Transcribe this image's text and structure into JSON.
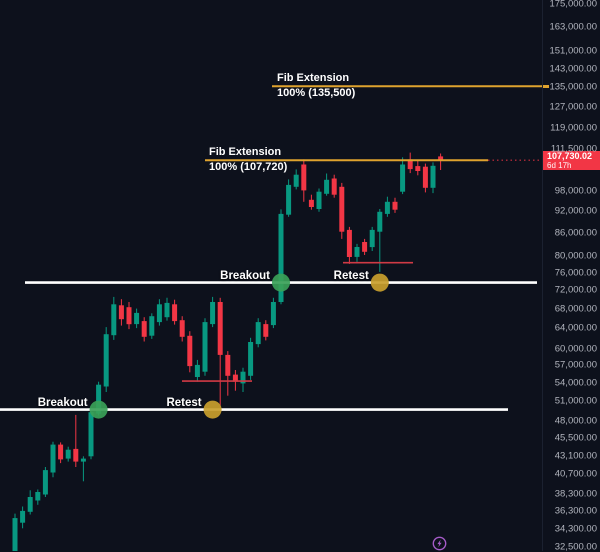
{
  "colors": {
    "background": "#0d111c",
    "bull": "#089981",
    "bear": "#f23645",
    "fib_line": "#dfa32e",
    "level_line": "#ffffff",
    "swing_line": "#d03a45",
    "breakout_marker": "#3aa158",
    "retest_marker": "#c9a02c",
    "axis_text": "#b2b5be",
    "price_label_bg": "#f23645",
    "watermark": "#a55bc8"
  },
  "axis": {
    "price_label": "107,730.02",
    "countdown": "6d 17h"
  },
  "chart_data": {
    "type": "candlestick",
    "scale": "log",
    "ylim": [
      31800,
      181000
    ],
    "grid": "off",
    "legend": "none",
    "price_axis_ticks": [
      175000,
      163000,
      151000,
      143000,
      135000,
      127000,
      119000,
      111500,
      98000,
      92000,
      86000,
      80000,
      76000,
      72000,
      68000,
      64000,
      60000,
      57000,
      54000,
      51000,
      48000,
      45500,
      43100,
      40700,
      38300,
      36300,
      34300,
      32500
    ],
    "last_price": 107730.02,
    "last_price_text": "107,730.02",
    "countdown": "6d 17h",
    "candles_columns": [
      "open",
      "high",
      "low",
      "close"
    ],
    "candles": [
      [
        31900,
        36000,
        31800,
        35500
      ],
      [
        35000,
        36800,
        34400,
        36300
      ],
      [
        36200,
        38700,
        35900,
        37900
      ],
      [
        37500,
        38800,
        37000,
        38500
      ],
      [
        38200,
        41600,
        37900,
        41200
      ],
      [
        40900,
        45000,
        40300,
        44600
      ],
      [
        44600,
        44900,
        42100,
        42600
      ],
      [
        42700,
        44300,
        42300,
        43900
      ],
      [
        44000,
        48900,
        41600,
        42300
      ],
      [
        42300,
        43000,
        39800,
        42700
      ],
      [
        43000,
        49800,
        42600,
        49300
      ],
      [
        49100,
        54200,
        48800,
        53700
      ],
      [
        53400,
        64200,
        52500,
        62800
      ],
      [
        62600,
        70500,
        61700,
        68900
      ],
      [
        68700,
        70000,
        64500,
        65800
      ],
      [
        68300,
        69400,
        63800,
        64800
      ],
      [
        64800,
        68000,
        64000,
        67100
      ],
      [
        65400,
        66200,
        61400,
        62300
      ],
      [
        62500,
        67000,
        61900,
        66400
      ],
      [
        65200,
        70000,
        64500,
        68900
      ],
      [
        66200,
        70300,
        65500,
        69200
      ],
      [
        68900,
        69900,
        64700,
        65400
      ],
      [
        65600,
        66400,
        61400,
        62300
      ],
      [
        62500,
        63400,
        55800,
        56900
      ],
      [
        55000,
        58000,
        54200,
        57100
      ],
      [
        55900,
        66000,
        55200,
        65200
      ],
      [
        64800,
        70500,
        64200,
        69400
      ],
      [
        69400,
        70300,
        50300,
        58900
      ],
      [
        58900,
        59600,
        51900,
        55200
      ],
      [
        55400,
        56200,
        52700,
        54200
      ],
      [
        53900,
        56600,
        52500,
        55900
      ],
      [
        55200,
        62100,
        54500,
        61300
      ],
      [
        60900,
        66000,
        60300,
        65200
      ],
      [
        64800,
        65600,
        61600,
        62300
      ],
      [
        64600,
        70300,
        64000,
        69400
      ],
      [
        69400,
        92500,
        68900,
        91200
      ],
      [
        91000,
        101500,
        90400,
        99800
      ],
      [
        99200,
        104700,
        98400,
        103000
      ],
      [
        106300,
        108000,
        94700,
        98100
      ],
      [
        95300,
        96800,
        92400,
        93200
      ],
      [
        92600,
        98700,
        91800,
        97700
      ],
      [
        97100,
        103400,
        96500,
        101400
      ],
      [
        101800,
        103000,
        95900,
        96800
      ],
      [
        99200,
        100400,
        84400,
        86300
      ],
      [
        86800,
        87600,
        78100,
        79800
      ],
      [
        79800,
        83100,
        78600,
        82300
      ],
      [
        83600,
        84400,
        80300,
        81100
      ],
      [
        82300,
        87600,
        81300,
        86800
      ],
      [
        86300,
        92600,
        76200,
        91800
      ],
      [
        91200,
        96200,
        90400,
        94700
      ],
      [
        94700,
        95900,
        91500,
        92400
      ],
      [
        97700,
        108700,
        97000,
        106300
      ],
      [
        108000,
        110300,
        103500,
        104800
      ],
      [
        105800,
        107600,
        102800,
        104200
      ],
      [
        105600,
        106600,
        97500,
        98900
      ],
      [
        98900,
        107000,
        97300,
        105900
      ],
      [
        109000,
        110000,
        104500,
        107730
      ]
    ],
    "fib_extensions": [
      {
        "label": "Fib Extension",
        "sublabel": "100% (135,500)",
        "price": 135500
      },
      {
        "label": "Fib Extension",
        "sublabel": "100% (107,720)",
        "price": 107720
      }
    ],
    "breakout_levels": [
      {
        "price": 73700
      },
      {
        "price": 49700
      }
    ],
    "swing_low_lines": [
      {
        "price": 54300
      },
      {
        "price": 78400
      }
    ],
    "markers": [
      {
        "label": "Breakout",
        "kind": "breakout",
        "index": 11,
        "price": 49700
      },
      {
        "label": "Retest",
        "kind": "retest",
        "index": 26,
        "price": 49700
      },
      {
        "label": "Breakout",
        "kind": "breakout",
        "index": 35,
        "price": 73700
      },
      {
        "label": "Retest",
        "kind": "retest",
        "index": 48,
        "price": 73700
      }
    ]
  }
}
